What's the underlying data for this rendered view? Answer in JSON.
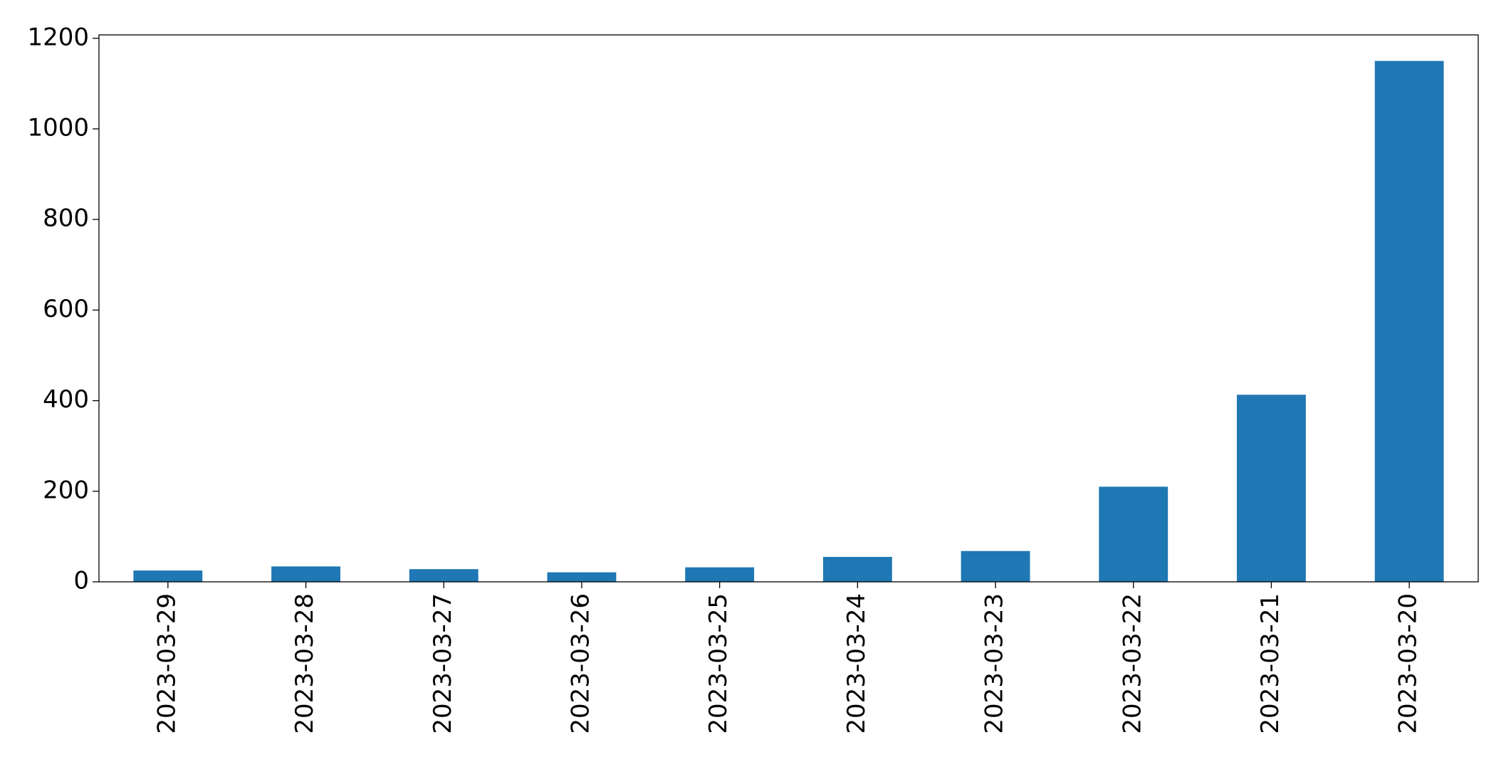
{
  "chart_data": {
    "type": "bar",
    "categories": [
      "2023-03-29",
      "2023-03-28",
      "2023-03-27",
      "2023-03-26",
      "2023-03-25",
      "2023-03-24",
      "2023-03-23",
      "2023-03-22",
      "2023-03-21",
      "2023-03-20"
    ],
    "values": [
      25,
      34,
      28,
      21,
      32,
      55,
      68,
      210,
      413,
      1150
    ],
    "color": "#1f77b4",
    "ylim": [
      0,
      1207.5
    ],
    "yticks": [
      0,
      200,
      400,
      600,
      800,
      1000,
      1200
    ],
    "grid": false
  }
}
